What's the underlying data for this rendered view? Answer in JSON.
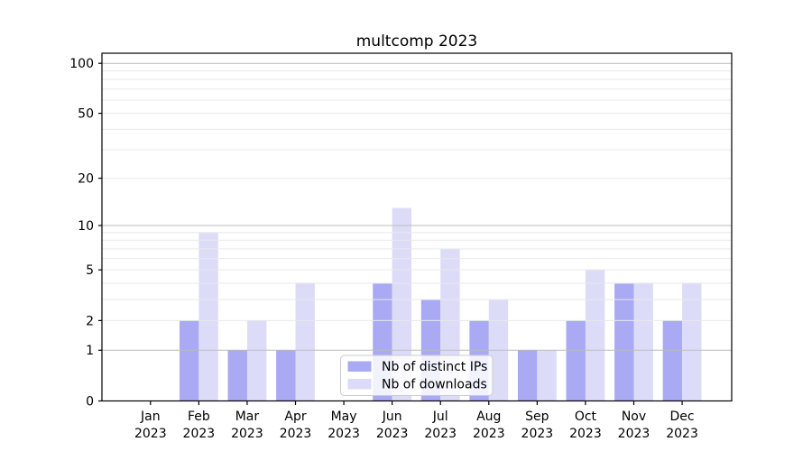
{
  "title": "multcomp 2023",
  "chart_data": {
    "type": "bar",
    "title": "multcomp 2023",
    "x_tick_months": [
      "Jan",
      "Feb",
      "Mar",
      "Apr",
      "May",
      "Jun",
      "Jul",
      "Aug",
      "Sep",
      "Oct",
      "Nov",
      "Dec"
    ],
    "x_tick_year": "2023",
    "series": [
      {
        "name": "Nb of distinct IPs",
        "color": "#a9a9f4",
        "values": [
          0,
          2,
          1,
          1,
          0,
          4,
          3,
          2,
          1,
          2,
          4,
          2
        ]
      },
      {
        "name": "Nb of downloads",
        "color": "#dcdcf9",
        "values": [
          0,
          9,
          2,
          4,
          0,
          13,
          7,
          3,
          1,
          5,
          4,
          4
        ]
      }
    ],
    "y_scale": "log1p",
    "y_tick_labels": [
      0,
      1,
      2,
      5,
      10,
      20,
      50,
      100
    ],
    "minor_gridlines": [
      2,
      3,
      4,
      5,
      6,
      7,
      8,
      9,
      20,
      30,
      40,
      50,
      60,
      70,
      80,
      90
    ],
    "major_gridlines": [
      1,
      10,
      100
    ],
    "ylim": [
      0,
      115
    ],
    "grid": "on",
    "legend_position": "inside lower-center",
    "colors": {
      "axis": "#000000",
      "minor_grid": "#e9e9e9",
      "major_grid": "#bbbbbb",
      "background": "#ffffff",
      "legend_border": "#cccccc",
      "legend_background": "#ffffff"
    }
  }
}
